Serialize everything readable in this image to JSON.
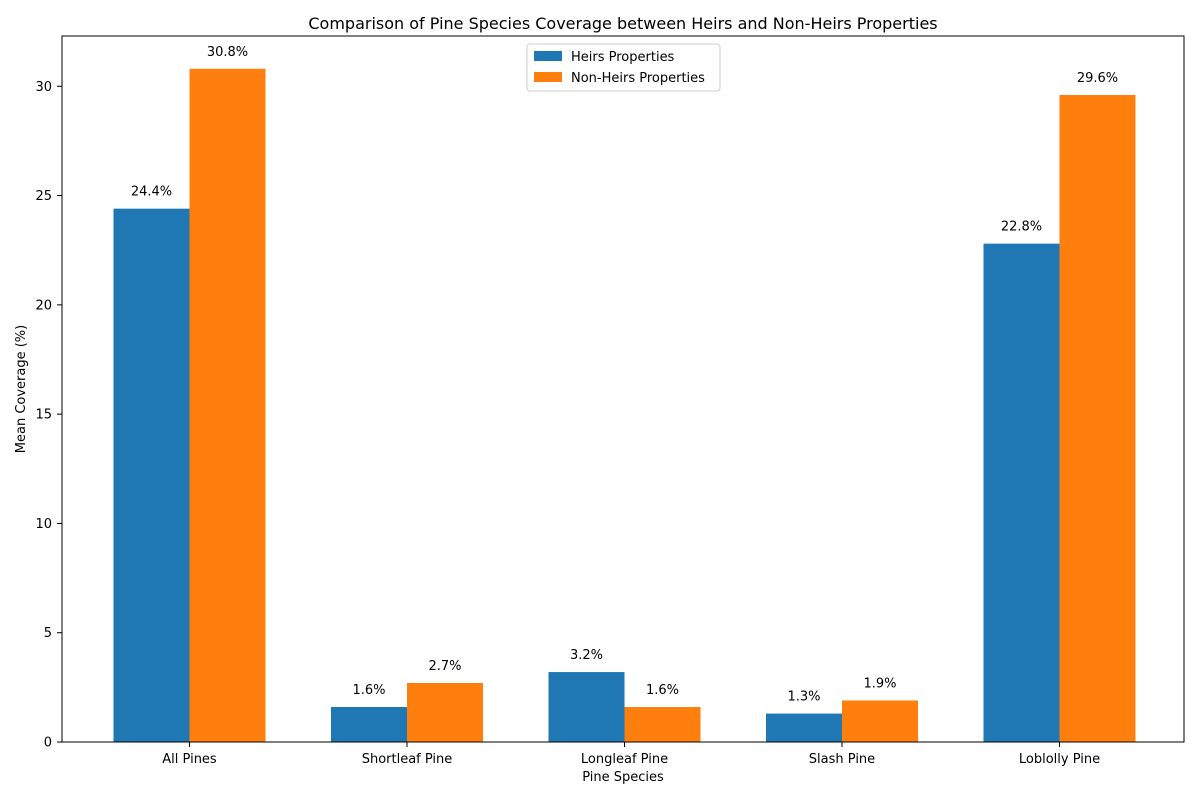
{
  "chart_data": {
    "type": "bar",
    "title": "Comparison of Pine Species Coverage between Heirs and Non-Heirs Properties",
    "xlabel": "Pine Species",
    "ylabel": "Mean Coverage (%)",
    "categories": [
      "All Pines",
      "Shortleaf Pine",
      "Longleaf Pine",
      "Slash Pine",
      "Loblolly Pine"
    ],
    "series": [
      {
        "name": "Heirs Properties",
        "color": "#1f77b4",
        "values": [
          24.4,
          1.6,
          3.2,
          1.3,
          22.8
        ],
        "labels": [
          "24.4%",
          "1.6%",
          "3.2%",
          "1.3%",
          "22.8%"
        ]
      },
      {
        "name": "Non-Heirs Properties",
        "color": "#ff7f0e",
        "values": [
          30.8,
          2.7,
          1.6,
          1.9,
          29.6
        ],
        "labels": [
          "30.8%",
          "2.7%",
          "1.6%",
          "1.9%",
          "29.6%"
        ]
      }
    ],
    "ylim": [
      0,
      32.3
    ],
    "yticks": [
      0,
      5,
      10,
      15,
      20,
      25,
      30
    ],
    "grid": false,
    "legend_position": "upper-center"
  }
}
